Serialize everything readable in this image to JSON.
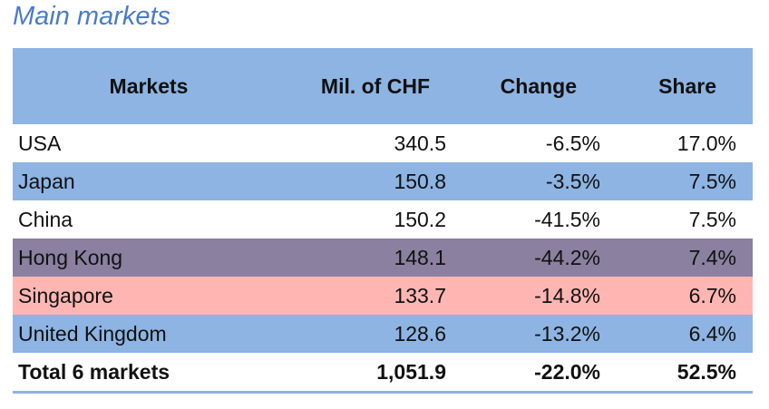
{
  "title": "Main markets",
  "chart_data": {
    "type": "table",
    "columns": [
      "Markets",
      "Mil. of CHF",
      "Change",
      "Share"
    ],
    "rows": [
      {
        "market": "USA",
        "value": "340.5",
        "change": "-6.5%",
        "share": "17.0%",
        "color": "#ffffff"
      },
      {
        "market": "Japan",
        "value": "150.8",
        "change": "-3.5%",
        "share": "7.5%",
        "color": "#8db4e2"
      },
      {
        "market": "China",
        "value": "150.2",
        "change": "-41.5%",
        "share": "7.5%",
        "color": "#ffffff"
      },
      {
        "market": "Hong Kong",
        "value": "148.1",
        "change": "-44.2%",
        "share": "7.4%",
        "color": "#8b80a0"
      },
      {
        "market": "Singapore",
        "value": "133.7",
        "change": "-14.8%",
        "share": "6.7%",
        "color": "#ffb6b3"
      },
      {
        "market": "United Kingdom",
        "value": "128.6",
        "change": "-13.2%",
        "share": "6.4%",
        "color": "#8db4e2"
      }
    ],
    "total": {
      "market": "Total 6 markets",
      "value": "1,051.9",
      "change": "-22.0%",
      "share": "52.5%"
    }
  }
}
